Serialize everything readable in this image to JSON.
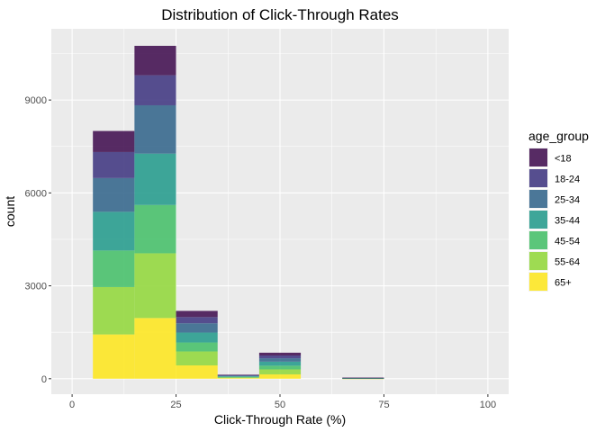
{
  "chart_data": {
    "type": "bar",
    "stacked": true,
    "title": "Distribution of Click-Through Rates",
    "xlabel": "Click-Through Rate (%)",
    "ylabel": "count",
    "xlim": [
      -5,
      105
    ],
    "ylim": [
      -500,
      11300
    ],
    "x_ticks": [
      0,
      25,
      50,
      75,
      100
    ],
    "y_ticks": [
      0,
      3000,
      6000,
      9000
    ],
    "grid": true,
    "legend_position": "right",
    "legend_title": "age_group",
    "bins": [
      {
        "x0": 5,
        "x1": 15
      },
      {
        "x0": 15,
        "x1": 25
      },
      {
        "x0": 25,
        "x1": 35
      },
      {
        "x0": 35,
        "x1": 45
      },
      {
        "x0": 45,
        "x1": 55
      },
      {
        "x0": 55,
        "x1": 65
      },
      {
        "x0": 65,
        "x1": 75
      },
      {
        "x0": 75,
        "x1": 85
      },
      {
        "x0": 85,
        "x1": 95
      }
    ],
    "series": [
      {
        "name": "65+",
        "color": "#FDE725",
        "values": [
          1430,
          1960,
          430,
          20,
          140,
          0,
          5,
          0,
          0
        ]
      },
      {
        "name": "55-64",
        "color": "#95D840",
        "values": [
          1530,
          2090,
          450,
          20,
          160,
          0,
          5,
          0,
          0
        ]
      },
      {
        "name": "45-54",
        "color": "#4AC16D",
        "values": [
          1180,
          1560,
          290,
          20,
          120,
          0,
          5,
          0,
          0
        ]
      },
      {
        "name": "35-44",
        "color": "#2A9D8F",
        "values": [
          1250,
          1660,
          320,
          20,
          130,
          0,
          5,
          0,
          0
        ]
      },
      {
        "name": "25-34",
        "color": "#39698E",
        "values": [
          1090,
          1560,
          300,
          20,
          110,
          0,
          5,
          0,
          0
        ]
      },
      {
        "name": "18-24",
        "color": "#453C84",
        "values": [
          840,
          970,
          200,
          15,
          90,
          0,
          5,
          0,
          0
        ]
      },
      {
        "name": "<18",
        "color": "#461554",
        "values": [
          680,
          950,
          200,
          15,
          90,
          0,
          5,
          0,
          0
        ]
      }
    ],
    "legend_order": [
      "<18",
      "18-24",
      "25-34",
      "35-44",
      "45-54",
      "55-64",
      "65+"
    ]
  }
}
